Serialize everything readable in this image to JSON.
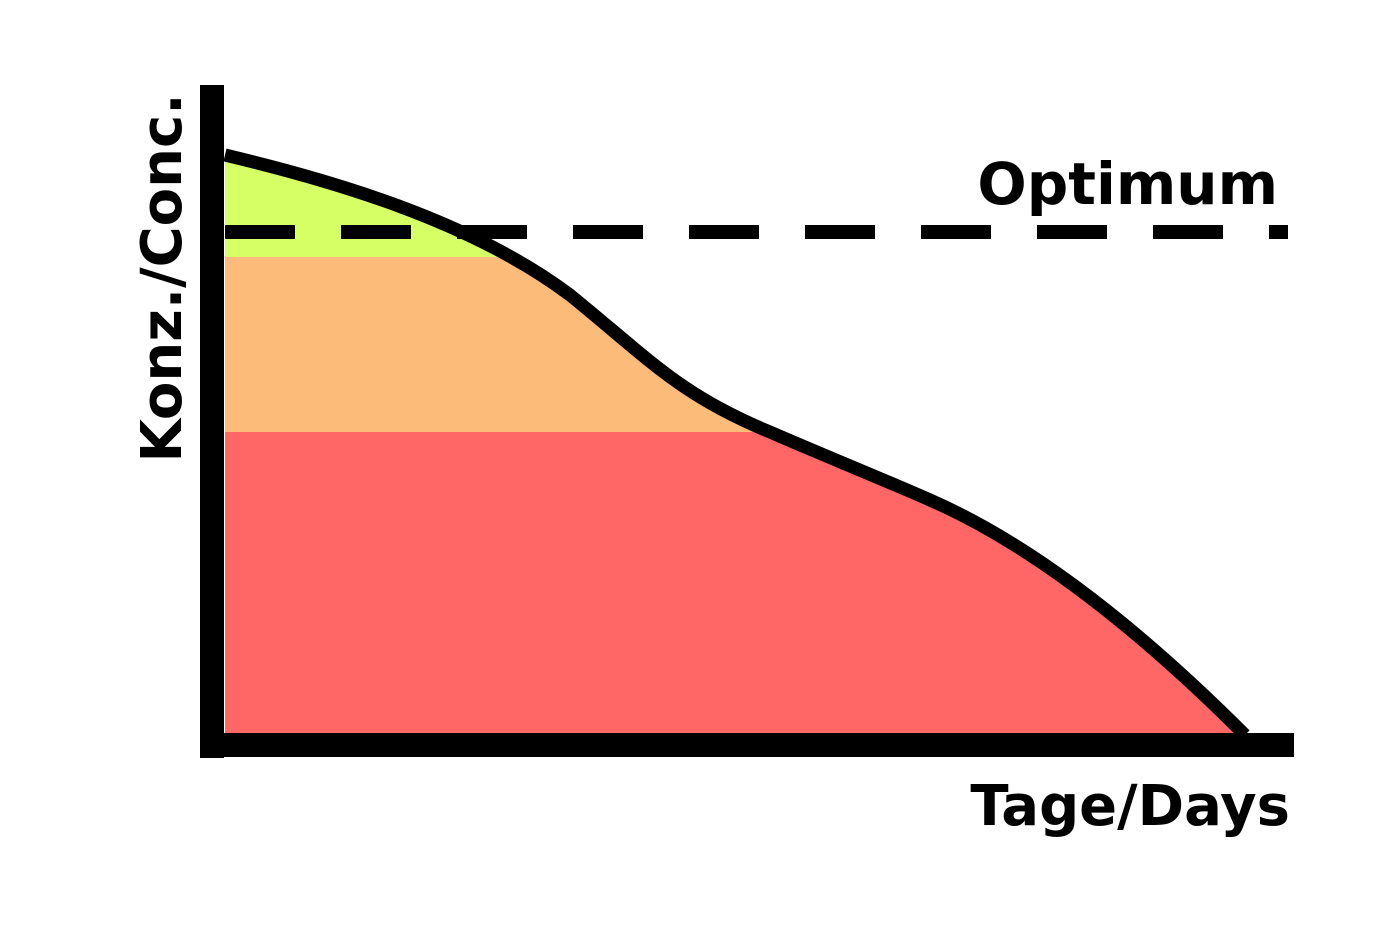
{
  "y_axis_label": "Konz./Conc.",
  "optimum_label": "Optimum",
  "x_axis_label": "Tage/Days"
}
